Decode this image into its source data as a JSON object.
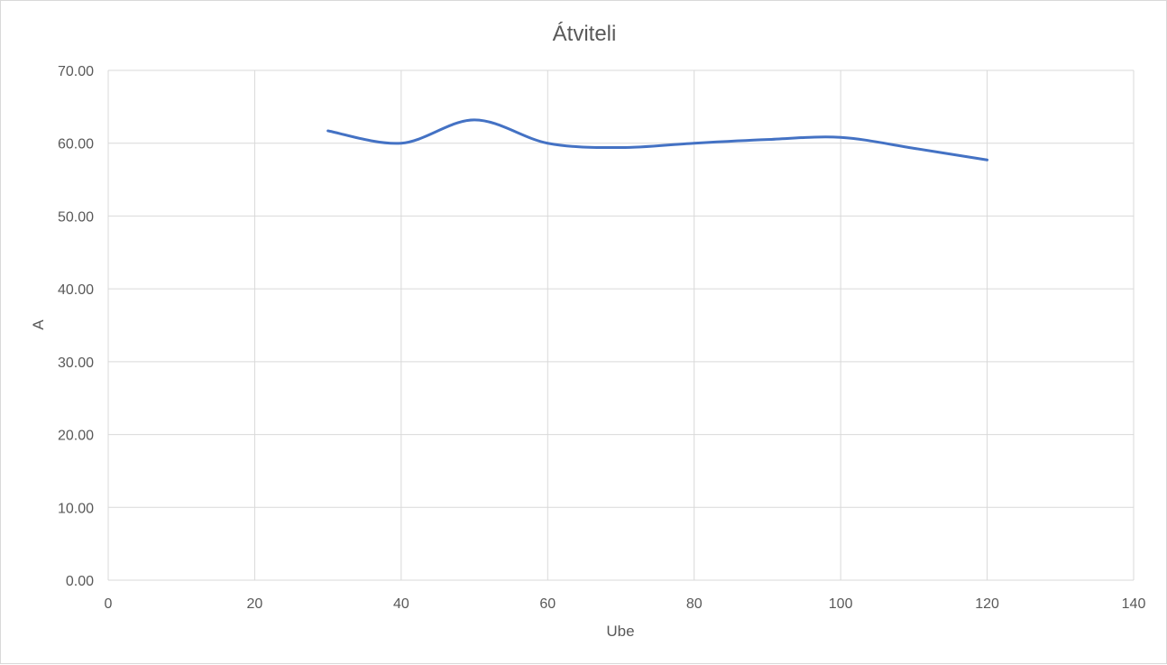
{
  "chart_data": {
    "type": "line",
    "title": "Átviteli",
    "xlabel": "Ube",
    "ylabel": "A",
    "xlim": [
      0,
      140
    ],
    "ylim": [
      0,
      70
    ],
    "x_ticks": [
      "0",
      "20",
      "40",
      "60",
      "80",
      "100",
      "120",
      "140"
    ],
    "x_tick_values": [
      0,
      20,
      40,
      60,
      80,
      100,
      120,
      140
    ],
    "y_ticks": [
      "0.00",
      "10.00",
      "20.00",
      "30.00",
      "40.00",
      "50.00",
      "60.00",
      "70.00"
    ],
    "y_tick_values": [
      0,
      10,
      20,
      30,
      40,
      50,
      60,
      70
    ],
    "grid": true,
    "smooth": true,
    "series": [
      {
        "color": "#4472c4",
        "x": [
          30,
          40,
          50,
          60,
          70,
          80,
          90,
          100,
          110,
          120
        ],
        "y": [
          61.7,
          60.0,
          63.2,
          60.0,
          59.4,
          60.0,
          60.5,
          60.8,
          59.3,
          57.7
        ]
      }
    ]
  }
}
